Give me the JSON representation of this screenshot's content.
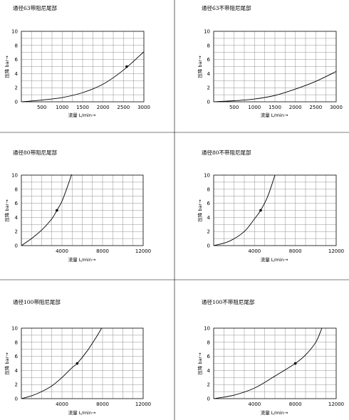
{
  "chart_data": [
    {
      "type": "line",
      "title": "通径63带阻尼尾部",
      "xlabel": "流量  L/min→",
      "ylabel": "压降  bar→",
      "xlim": [
        0,
        3000
      ],
      "ylim": [
        0,
        10
      ],
      "xticks": [
        500,
        1000,
        1500,
        2000,
        2500,
        3000
      ],
      "yticks": [
        0,
        2,
        4,
        6,
        8,
        10
      ],
      "x": [
        0,
        500,
        1000,
        1500,
        2000,
        2500,
        3000
      ],
      "y": [
        0,
        0.25,
        0.6,
        1.3,
        2.5,
        4.5,
        7.1
      ],
      "marker": {
        "x": 2580,
        "y": 5.0
      },
      "grid": true
    },
    {
      "type": "line",
      "title": "通径63不带阻尼尾部",
      "xlabel": "流量  L/min→",
      "ylabel": "压降  bar→",
      "xlim": [
        0,
        3000
      ],
      "ylim": [
        0,
        10
      ],
      "xticks": [
        500,
        1000,
        1500,
        2000,
        2500,
        3000
      ],
      "yticks": [
        0,
        2,
        4,
        6,
        8,
        10
      ],
      "x": [
        0,
        500,
        1000,
        1500,
        2000,
        2500,
        3000
      ],
      "y": [
        0,
        0.15,
        0.4,
        0.9,
        1.8,
        2.9,
        4.3
      ],
      "grid": true
    },
    {
      "type": "line",
      "title": "通径80带阻尼尾部",
      "xlabel": "流量  L/min→",
      "ylabel": "压降  bar→",
      "xlim": [
        0,
        12000
      ],
      "ylim": [
        0,
        10
      ],
      "xticks": [
        4000,
        8000,
        12000
      ],
      "yticks": [
        0,
        2,
        4,
        6,
        8,
        10
      ],
      "x": [
        0,
        1000,
        2000,
        3000,
        3500,
        4000,
        4500,
        5000
      ],
      "y": [
        0,
        1.0,
        2.2,
        3.8,
        5.0,
        6.3,
        8.2,
        10.3
      ],
      "marker": {
        "x": 3500,
        "y": 5.0
      },
      "grid": true
    },
    {
      "type": "line",
      "title": "通径80不带阻尼尾部",
      "xlabel": "流量  L/min→",
      "ylabel": "压降  bar→",
      "xlim": [
        0,
        12000
      ],
      "ylim": [
        0,
        10
      ],
      "xticks": [
        4000,
        8000,
        12000
      ],
      "yticks": [
        0,
        2,
        4,
        6,
        8,
        10
      ],
      "x": [
        0,
        1500,
        3000,
        4000,
        4600,
        5300,
        6000
      ],
      "y": [
        0,
        0.6,
        2.0,
        3.8,
        5.0,
        7.0,
        10.0
      ],
      "marker": {
        "x": 4600,
        "y": 5.0
      },
      "grid": true
    },
    {
      "type": "line",
      "title": "通径100带阻尼尾部",
      "xlabel": "流量  L/min→",
      "ylabel": "压降  bar→",
      "xlim": [
        0,
        12000
      ],
      "ylim": [
        0,
        10
      ],
      "xticks": [
        4000,
        8000,
        12000
      ],
      "yticks": [
        0,
        2,
        4,
        6,
        8,
        10
      ],
      "x": [
        0,
        1000,
        2000,
        3000,
        4000,
        5000,
        5500,
        6500,
        7500,
        7900
      ],
      "y": [
        0,
        0.4,
        1.0,
        1.8,
        3.0,
        4.4,
        5.0,
        6.8,
        9.0,
        10.0
      ],
      "marker": {
        "x": 5500,
        "y": 5.0
      },
      "grid": true
    },
    {
      "type": "line",
      "title": "通径100不带阻尼尾部",
      "xlabel": "流量  L/min→",
      "ylabel": "压降  bar→",
      "xlim": [
        0,
        12000
      ],
      "ylim": [
        0,
        10
      ],
      "xticks": [
        4000,
        8000,
        12000
      ],
      "yticks": [
        0,
        2,
        4,
        6,
        8,
        10
      ],
      "x": [
        0,
        2000,
        4000,
        6000,
        8000,
        9000,
        10000,
        10600
      ],
      "y": [
        0,
        0.5,
        1.5,
        3.2,
        5.0,
        6.2,
        8.0,
        10.0
      ],
      "marker": {
        "x": 8000,
        "y": 5.0
      },
      "grid": true
    }
  ]
}
